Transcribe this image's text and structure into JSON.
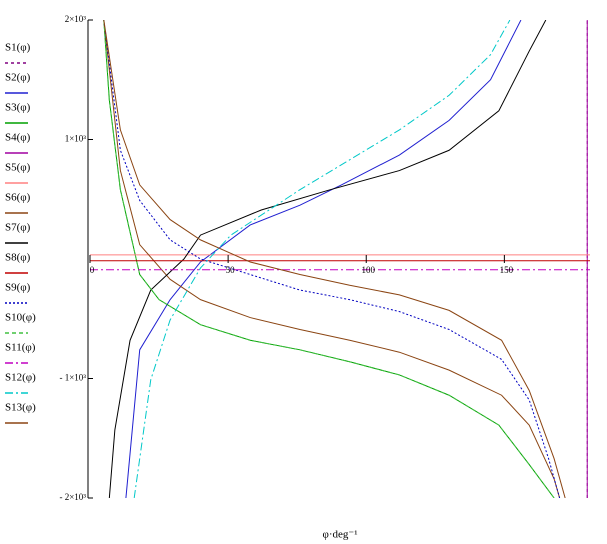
{
  "chart_data": {
    "type": "line",
    "x_label": "φ·deg⁻¹",
    "xlim": [
      0,
      181
    ],
    "xticks": [
      0,
      50,
      100,
      150
    ],
    "ylim": [
      -2000,
      2000
    ],
    "yticks": [
      {
        "value": 2000,
        "label": "2×10³"
      },
      {
        "value": 1000,
        "label": "1×10³"
      },
      {
        "value": -1000,
        "label": "- 1×10³"
      },
      {
        "value": -2000,
        "label": "- 2×10³"
      }
    ],
    "series": [
      {
        "name": "S1(φ)",
        "color": "#800080",
        "dash": "3,3",
        "x": [
          180,
          180
        ],
        "values": [
          -2000,
          2000
        ]
      },
      {
        "name": "S2(φ)",
        "color": "#2020d0",
        "dash": "none",
        "x": [
          13,
          18,
          29,
          40,
          58,
          76,
          91,
          112,
          130,
          145,
          156
        ],
        "values": [
          -2000,
          -760,
          -340,
          -25,
          285,
          450,
          620,
          870,
          1160,
          1500,
          2000
        ]
      },
      {
        "name": "S3(φ)",
        "color": "#00a000",
        "dash": "none",
        "x": [
          5,
          7,
          11,
          18,
          25,
          40,
          58,
          76,
          94,
          112,
          130,
          148,
          159,
          168
        ],
        "values": [
          2000,
          1330,
          580,
          -130,
          -340,
          -550,
          -680,
          -760,
          -860,
          -970,
          -1140,
          -1390,
          -1720,
          -2000
        ]
      },
      {
        "name": "S4(φ)",
        "color": "#a000a0",
        "dash": "none",
        "x": [
          180,
          180
        ],
        "values": [
          -2000,
          2000
        ]
      },
      {
        "name": "S5(φ)",
        "color": "#ff8080",
        "dash": "none",
        "x": [
          0,
          181
        ],
        "values": [
          35,
          35
        ]
      },
      {
        "name": "S6(φ)",
        "color": "#8b4513",
        "dash": "none",
        "x": [
          5,
          11,
          18,
          29,
          40,
          58,
          76,
          94,
          112,
          130,
          149,
          159,
          168,
          170
        ],
        "values": [
          2000,
          740,
          120,
          -170,
          -340,
          -490,
          -590,
          -680,
          -780,
          -930,
          -1140,
          -1390,
          -1840,
          -2000
        ]
      },
      {
        "name": "S7(φ)",
        "color": "#000000",
        "dash": "none",
        "x": [
          7,
          9,
          14.5,
          22,
          34,
          40,
          62,
          87,
          112,
          130,
          148,
          159,
          165
        ],
        "values": [
          -2000,
          -1430,
          -680,
          -260,
          0,
          200,
          410,
          580,
          740,
          910,
          1240,
          1740,
          2000
        ]
      },
      {
        "name": "S8(φ)",
        "color": "#c00000",
        "dash": "none",
        "x": [
          0,
          181
        ],
        "values": [
          -15,
          -15
        ]
      },
      {
        "name": "S9(φ)",
        "color": "#0000c0",
        "dash": "2,2",
        "x": [
          5,
          11,
          18,
          29,
          40,
          58,
          76,
          94,
          112,
          130,
          149,
          159,
          166,
          170
        ],
        "values": [
          2000,
          910,
          490,
          160,
          0,
          -130,
          -260,
          -340,
          -440,
          -590,
          -840,
          -1180,
          -1670,
          -2000
        ]
      },
      {
        "name": "S10(φ)",
        "color": "#40c040",
        "dash": "4,3",
        "x": [
          5,
          7,
          11,
          18,
          25,
          40,
          58,
          76,
          94,
          112,
          130,
          148,
          159,
          168
        ],
        "values": [
          2000,
          1330,
          580,
          -130,
          -340,
          -550,
          -680,
          -760,
          -860,
          -970,
          -1140,
          -1390,
          -1720,
          -2000
        ]
      },
      {
        "name": "S11(φ)",
        "color": "#c000c0",
        "dash": "8,3,2,3",
        "x": [
          0,
          181
        ],
        "values": [
          -90,
          -90
        ]
      },
      {
        "name": "S12(φ)",
        "color": "#00c8c8",
        "dash": "8,3,2,3",
        "x": [
          16,
          22,
          29,
          40,
          51,
          76,
          94,
          112,
          130,
          145,
          152
        ],
        "values": [
          -2000,
          -1010,
          -510,
          -75,
          200,
          580,
          830,
          1080,
          1370,
          1710,
          2000
        ]
      },
      {
        "name": "S13(φ)",
        "color": "#8b4513",
        "dash": "none",
        "x": [
          5,
          11,
          18,
          29,
          40,
          58,
          76,
          94,
          112,
          130,
          149,
          159,
          168,
          172
        ],
        "values": [
          2000,
          1080,
          620,
          330,
          160,
          -25,
          -130,
          -220,
          -300,
          -430,
          -680,
          -1100,
          -1670,
          -2000
        ]
      }
    ]
  }
}
